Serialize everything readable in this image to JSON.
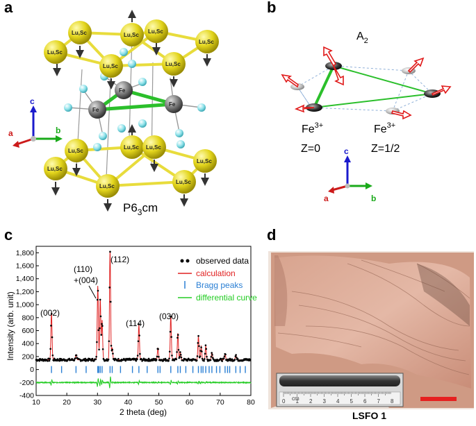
{
  "panels": {
    "a": {
      "letter": "a",
      "space_group": "P6",
      "space_group_sub": "3",
      "space_group_suffix": "cm",
      "site_label": "Lu,Sc",
      "fe_label": "Fe",
      "axes": {
        "c": "c",
        "a": "a",
        "b": "b"
      },
      "colors": {
        "lusc": "#e0d61a",
        "o": "#8fe0e8",
        "fe": "#7a7a7a",
        "bond": "#2bbf2b",
        "arrow": "#333333",
        "c_axis": "#1a1acc",
        "a_axis": "#cc1a1a",
        "b_axis": "#1aaa1a"
      }
    },
    "b": {
      "letter": "b",
      "mode": "A",
      "mode_sub": "2",
      "fe_left": "Fe",
      "fe_left_sup": "3+",
      "fe_right": "Fe",
      "fe_right_sup": "3+",
      "z_left": "Z=0",
      "z_right": "Z=1/2",
      "axes": {
        "c": "c",
        "a": "a",
        "b": "b"
      }
    },
    "c": {
      "letter": "c",
      "legend": [
        "observed data",
        "calculation",
        "Bragg peaks",
        "differential curve"
      ],
      "legend_colors": [
        "#000000",
        "#e02020",
        "#2a7fd4",
        "#22cc22"
      ],
      "peak_labels": [
        "(002)",
        "(110)",
        "+(004)",
        "(112)",
        "(114)",
        "(030)"
      ]
    },
    "d": {
      "letter": "d",
      "sample_label": "LSFO 1",
      "ruler_unit": "cm",
      "ruler_ticks": [
        "0",
        "1",
        "2",
        "3",
        "4",
        "5",
        "6",
        "7",
        "8"
      ],
      "scale_bar_color": "#e62020"
    }
  },
  "chart_data": {
    "type": "line",
    "xlabel": "2 theta (deg)",
    "ylabel": "Intensity (arb. unit)",
    "xlim": [
      10,
      80
    ],
    "ylim": [
      -400,
      1900
    ],
    "x_ticks": [
      10,
      20,
      30,
      40,
      50,
      60,
      70,
      80
    ],
    "y_ticks": [
      -400,
      -200,
      0,
      200,
      400,
      600,
      800,
      1000,
      1200,
      1400,
      1600,
      1800
    ],
    "y_tick_labels": [
      "-400",
      "-200",
      "0",
      "200",
      "400",
      "600",
      "800",
      "1,000",
      "1,200",
      "1,400",
      "1,600",
      "1,800"
    ],
    "background": 150,
    "peaks": [
      {
        "x": 15.0,
        "y": 880
      },
      {
        "x": 23.0,
        "y": 230
      },
      {
        "x": 30.1,
        "y": 1290
      },
      {
        "x": 30.9,
        "y": 1080
      },
      {
        "x": 31.5,
        "y": 760
      },
      {
        "x": 34.1,
        "y": 1830
      },
      {
        "x": 34.8,
        "y": 330
      },
      {
        "x": 43.5,
        "y": 690
      },
      {
        "x": 49.7,
        "y": 330
      },
      {
        "x": 53.9,
        "y": 820
      },
      {
        "x": 56.2,
        "y": 560
      },
      {
        "x": 57.0,
        "y": 260
      },
      {
        "x": 62.9,
        "y": 510
      },
      {
        "x": 63.8,
        "y": 360
      },
      {
        "x": 65.3,
        "y": 360
      },
      {
        "x": 67.3,
        "y": 260
      },
      {
        "x": 71.6,
        "y": 240
      },
      {
        "x": 75.1,
        "y": 230
      }
    ],
    "bragg_positions": [
      15.0,
      18.3,
      23.0,
      26.3,
      30.1,
      30.4,
      30.9,
      31.5,
      34.1,
      34.8,
      37.5,
      41.4,
      43.5,
      46.2,
      49.7,
      50.4,
      53.9,
      56.2,
      57.0,
      58.8,
      61.1,
      62.9,
      63.8,
      64.4,
      65.3,
      66.4,
      67.3,
      68.8,
      69.9,
      71.6,
      72.4,
      73.1,
      75.1,
      76.5,
      78.2
    ],
    "bragg_level": 0,
    "difference_level": -200
  }
}
